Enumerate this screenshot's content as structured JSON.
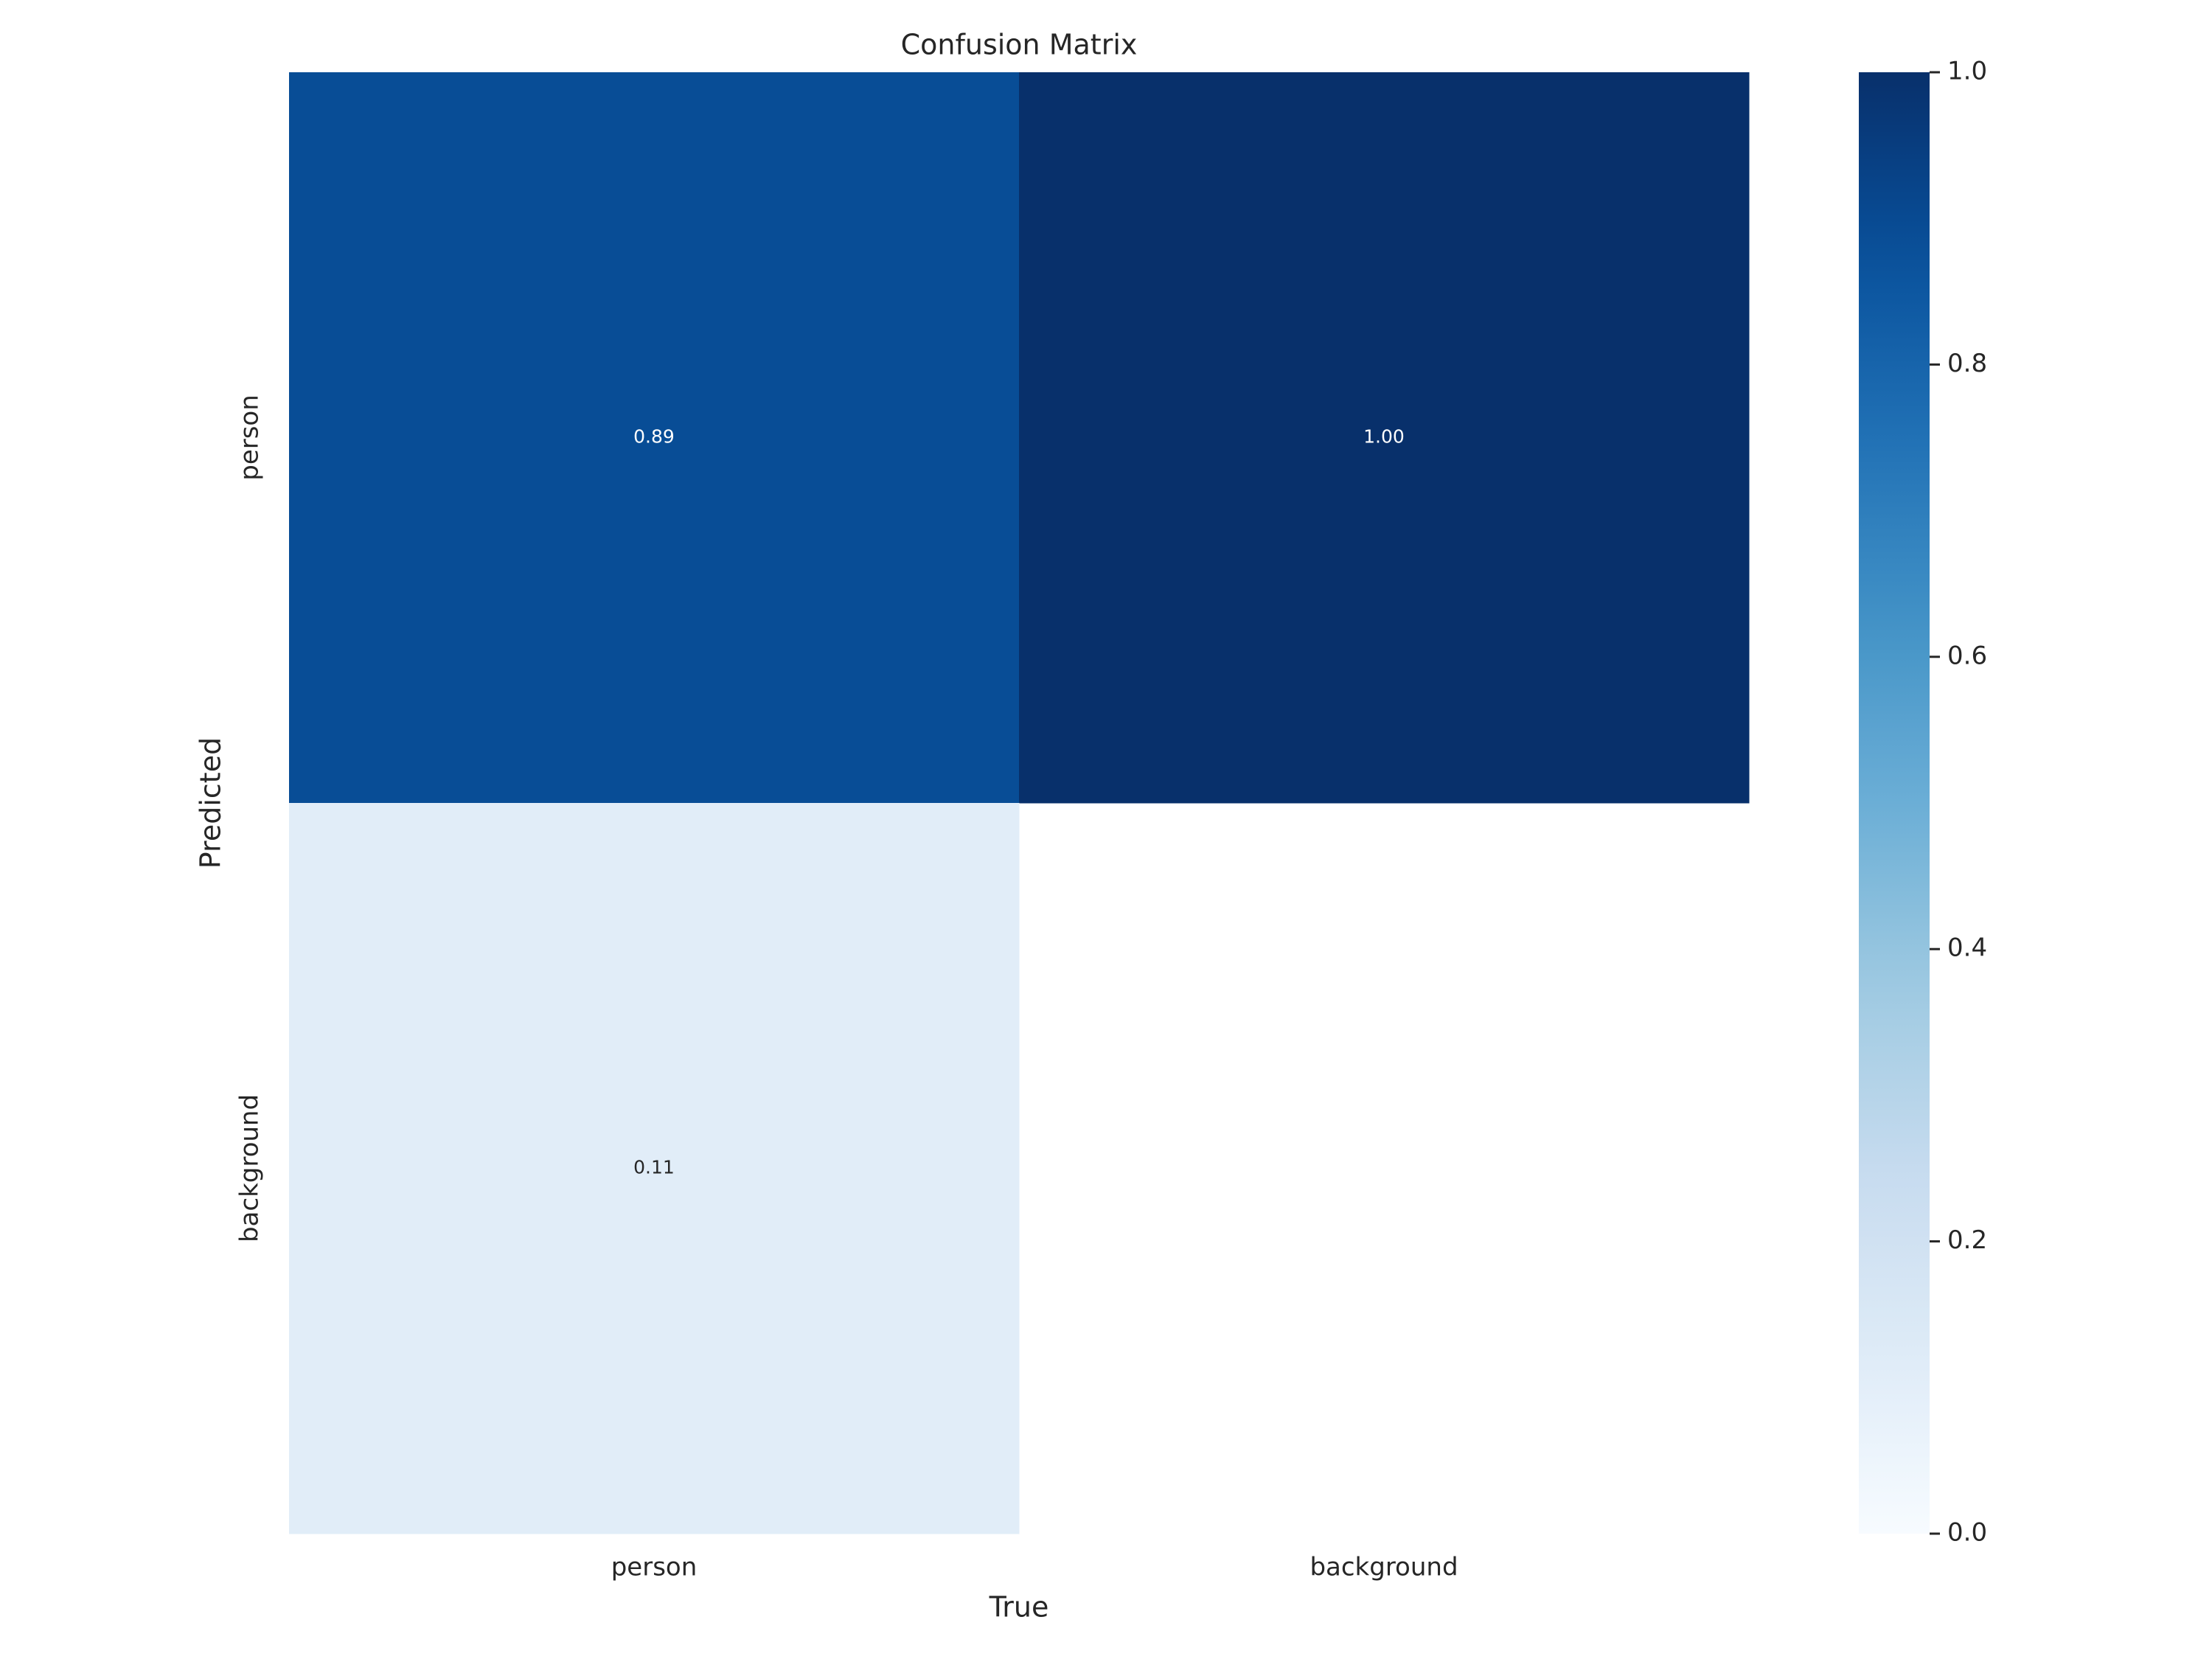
{
  "chart_data": {
    "type": "heatmap",
    "title": "Confusion Matrix",
    "x_label": "True",
    "y_label": "Predicted",
    "x_categories": [
      "person",
      "background"
    ],
    "y_categories": [
      "person",
      "background"
    ],
    "values": [
      [
        0.89,
        1.0
      ],
      [
        0.11,
        null
      ]
    ],
    "value_labels": [
      [
        "0.89",
        "1.00"
      ],
      [
        "0.11",
        null
      ]
    ],
    "colormap": "Blues",
    "zlim": [
      0,
      1
    ],
    "zticks": [
      {
        "value": 0,
        "label": "0.0"
      },
      {
        "value": 0.2,
        "label": "0.2"
      },
      {
        "value": 0.4,
        "label": "0.4"
      },
      {
        "value": 0.6,
        "label": "0.6"
      },
      {
        "value": 0.8,
        "label": "0.8"
      },
      {
        "value": 1,
        "label": "1.0"
      }
    ]
  }
}
